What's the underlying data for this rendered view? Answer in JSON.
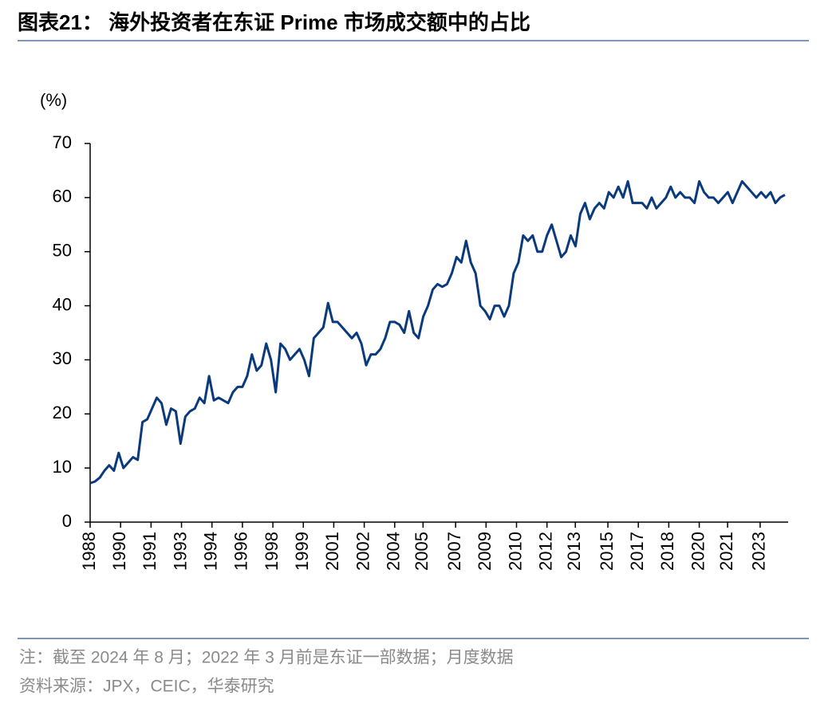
{
  "chart_data": {
    "type": "line",
    "title": "图表21：  海外投资者在东证 Prime 市场成交额中的占比",
    "ylabel": "(%)",
    "note": "注：截至 2024 年 8 月；2022 年 3 月前是东证一部数据；月度数据",
    "source": "资料来源：JPX，CEIC，华泰研究",
    "color": "#0a3a7c",
    "x": [
      1988,
      1988.25,
      1988.5,
      1988.75,
      1989,
      1989.25,
      1989.5,
      1989.75,
      1990,
      1990.25,
      1990.5,
      1990.75,
      1991,
      1991.25,
      1991.5,
      1991.75,
      1992,
      1992.25,
      1992.5,
      1992.75,
      1993,
      1993.25,
      1993.5,
      1993.75,
      1994,
      1994.25,
      1994.5,
      1994.75,
      1995,
      1995.25,
      1995.5,
      1995.75,
      1996,
      1996.25,
      1996.5,
      1996.75,
      1997,
      1997.25,
      1997.5,
      1997.75,
      1998,
      1998.25,
      1998.5,
      1998.75,
      1999,
      1999.25,
      1999.5,
      1999.75,
      2000,
      2000.25,
      2000.5,
      2000.75,
      2001,
      2001.25,
      2001.5,
      2001.75,
      2002,
      2002.25,
      2002.5,
      2002.75,
      2003,
      2003.25,
      2003.5,
      2003.75,
      2004,
      2004.25,
      2004.5,
      2004.75,
      2005,
      2005.25,
      2005.5,
      2005.75,
      2006,
      2006.25,
      2006.5,
      2006.75,
      2007,
      2007.25,
      2007.5,
      2007.75,
      2008,
      2008.25,
      2008.5,
      2008.75,
      2009,
      2009.25,
      2009.5,
      2009.75,
      2010,
      2010.25,
      2010.5,
      2010.75,
      2011,
      2011.25,
      2011.5,
      2011.75,
      2012,
      2012.25,
      2012.5,
      2012.75,
      2013,
      2013.25,
      2013.5,
      2013.75,
      2014,
      2014.25,
      2014.5,
      2014.75,
      2015,
      2015.25,
      2015.5,
      2015.75,
      2016,
      2016.25,
      2016.5,
      2016.75,
      2017,
      2017.25,
      2017.5,
      2017.75,
      2018,
      2018.25,
      2018.5,
      2018.75,
      2019,
      2019.25,
      2019.5,
      2019.75,
      2020,
      2020.25,
      2020.5,
      2020.75,
      2021,
      2021.25,
      2021.5,
      2021.75,
      2022,
      2022.25,
      2022.5,
      2022.75,
      2023,
      2023.25,
      2023.5,
      2023.75,
      2024,
      2024.25,
      2024.5
    ],
    "values": [
      7.2,
      7.5,
      8.2,
      9.5,
      10.5,
      9.5,
      12.8,
      10,
      11,
      12,
      11.5,
      18.5,
      19,
      21,
      23,
      22,
      18,
      21,
      20.5,
      14.5,
      19.5,
      20.5,
      21,
      23,
      22,
      27,
      22.5,
      23,
      22.5,
      22,
      24,
      25,
      25,
      27,
      31,
      28,
      29,
      33,
      30,
      24,
      33,
      32,
      30,
      31,
      32,
      30,
      27,
      34,
      35,
      36,
      40.5,
      37,
      37,
      36,
      35,
      34,
      35,
      33,
      29,
      31,
      31,
      32,
      34,
      37,
      37,
      36.5,
      35,
      39,
      35,
      34,
      38,
      40,
      43,
      44,
      43.5,
      44,
      46,
      49,
      48,
      52,
      48,
      46,
      40,
      39,
      37.5,
      40,
      40,
      38,
      40,
      46,
      48,
      53,
      52,
      53,
      50,
      50,
      53,
      55,
      52,
      49,
      50,
      53,
      51,
      57,
      59,
      56,
      58,
      59,
      58,
      61,
      60,
      62,
      60,
      63,
      59,
      59,
      59,
      58,
      60,
      58,
      59,
      60,
      62,
      60,
      61,
      60,
      60,
      59,
      63,
      61,
      60,
      60,
      59,
      60,
      61,
      59,
      61,
      63,
      62,
      61,
      60,
      61,
      60,
      61,
      59,
      60,
      60.5
    ],
    "xlim": [
      1988,
      2024.67
    ],
    "xticks": [
      1988,
      {
        "value": 1989.6,
        "label": "1990"
      },
      {
        "value": 1991.2,
        "label": "1991"
      },
      {
        "value": 1992.8,
        "label": "1993"
      },
      {
        "value": 1994.4,
        "label": "1994"
      },
      1996,
      {
        "value": 1997.6,
        "label": "1998"
      },
      {
        "value": 1999.2,
        "label": "1999"
      },
      {
        "value": 2000.8,
        "label": "2001"
      },
      {
        "value": 2002.4,
        "label": "2002"
      },
      2004,
      {
        "value": 2005.49,
        "label": "2005"
      },
      {
        "value": 2007.2,
        "label": "2007"
      },
      {
        "value": 2008.8,
        "label": "2009"
      },
      {
        "value": 2010.4,
        "label": "2010"
      },
      2012,
      {
        "value": 2013.49,
        "label": "2013"
      },
      {
        "value": 2015.2,
        "label": "2015"
      },
      {
        "value": 2016.8,
        "label": "2017"
      },
      {
        "value": 2018.4,
        "label": "2018"
      },
      2020,
      {
        "value": 2021.49,
        "label": "2021"
      },
      {
        "value": 2023.2,
        "label": "2023"
      }
    ],
    "ylim": [
      0,
      70
    ],
    "yticks": [
      0,
      10,
      20,
      30,
      40,
      50,
      60,
      70
    ],
    "grid": false
  }
}
